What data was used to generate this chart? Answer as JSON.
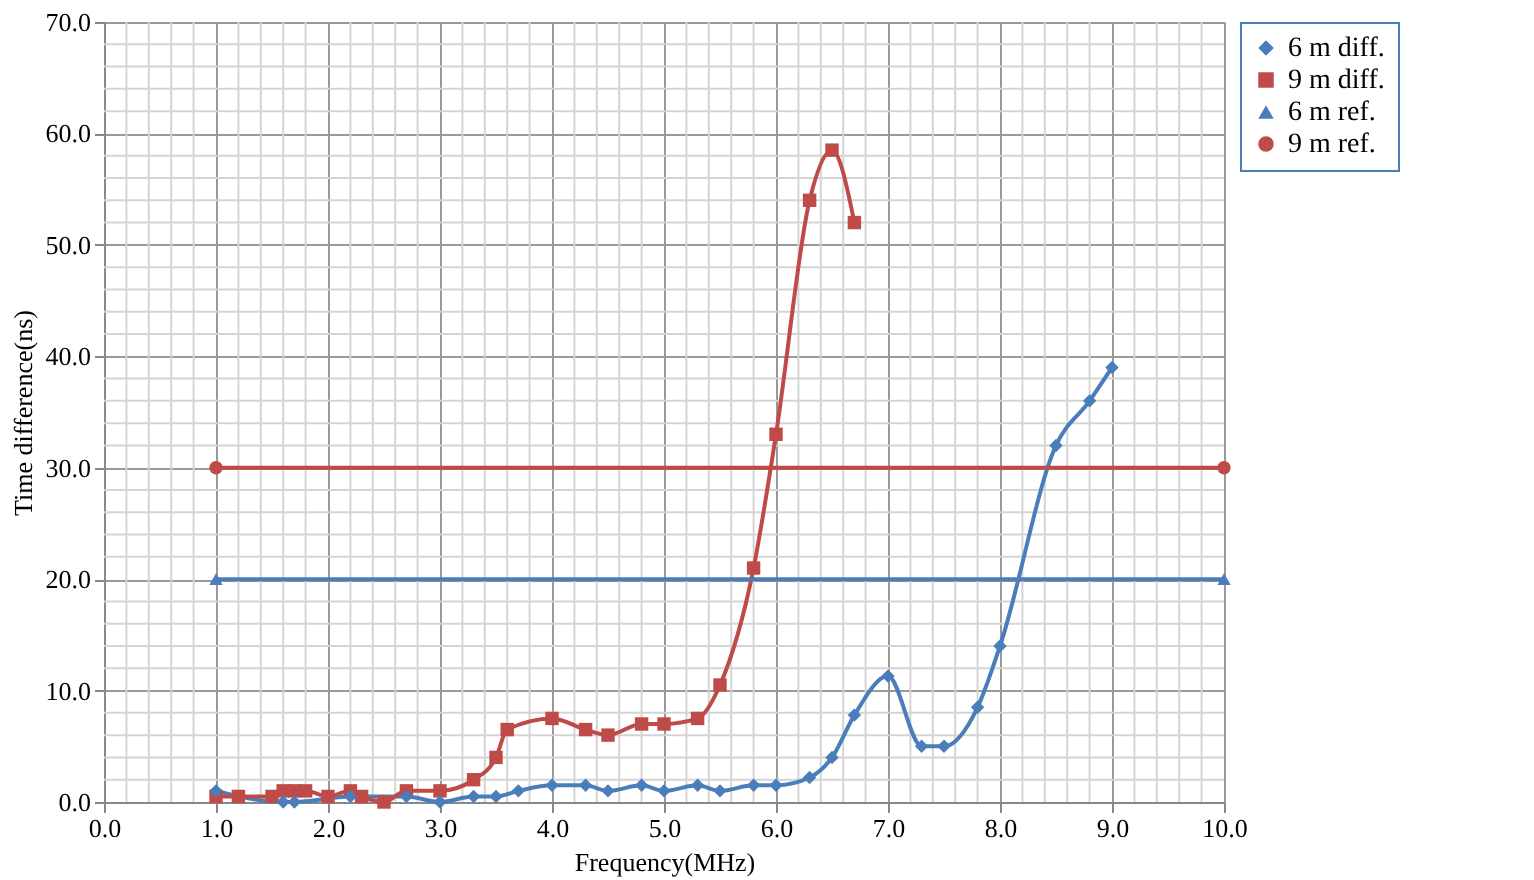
{
  "chart_data": {
    "type": "line",
    "xlabel": "Frequency(MHz)",
    "ylabel": "Time difference(ns)",
    "xlim": [
      0,
      10
    ],
    "ylim": [
      0,
      70
    ],
    "xticks": [
      {
        "value": 0,
        "label": "0.0"
      },
      {
        "value": 1,
        "label": "1.0"
      },
      {
        "value": 2,
        "label": "2.0"
      },
      {
        "value": 3,
        "label": "3.0"
      },
      {
        "value": 4,
        "label": "4.0"
      },
      {
        "value": 5,
        "label": "5.0"
      },
      {
        "value": 6,
        "label": "6.0"
      },
      {
        "value": 7,
        "label": "7.0"
      },
      {
        "value": 8,
        "label": "8.0"
      },
      {
        "value": 9,
        "label": "9.0"
      },
      {
        "value": 10,
        "label": "10.0"
      }
    ],
    "yticks": [
      {
        "value": 0,
        "label": "0.0"
      },
      {
        "value": 10,
        "label": "10.0"
      },
      {
        "value": 20,
        "label": "20.0"
      },
      {
        "value": 30,
        "label": "30.0"
      },
      {
        "value": 40,
        "label": "40.0"
      },
      {
        "value": 50,
        "label": "50.0"
      },
      {
        "value": 60,
        "label": "60.0"
      },
      {
        "value": 70,
        "label": "70.0"
      }
    ],
    "grid": true,
    "legend": "right",
    "line_style": "solid",
    "series": [
      {
        "name": "6 m diff.",
        "color": "#4a7ebb",
        "marker": "diamond",
        "x": [
          1.0,
          1.6,
          1.7,
          2.2,
          2.7,
          3.0,
          3.3,
          3.5,
          3.7,
          4.0,
          4.3,
          4.5,
          4.8,
          5.0,
          5.3,
          5.5,
          5.8,
          6.0,
          6.3,
          6.5,
          6.7,
          7.0,
          7.3,
          7.5,
          7.8,
          8.0,
          8.5,
          8.8,
          9.0
        ],
        "values": [
          1,
          0,
          0,
          0.5,
          0.5,
          0,
          0.5,
          0.5,
          1,
          1.5,
          1.5,
          1,
          1.5,
          1,
          1.5,
          1,
          1.5,
          1.5,
          2.2,
          4,
          7.8,
          11.3,
          5,
          5,
          8.5,
          14,
          32,
          36,
          39
        ]
      },
      {
        "name": "9 m diff.",
        "color": "#be4b48",
        "marker": "square",
        "x": [
          1.0,
          1.2,
          1.5,
          1.6,
          1.7,
          1.8,
          2.0,
          2.2,
          2.3,
          2.5,
          2.7,
          3.0,
          3.3,
          3.5,
          3.6,
          4.0,
          4.3,
          4.5,
          4.8,
          5.0,
          5.3,
          5.5,
          5.8,
          6.0,
          6.3,
          6.5,
          6.7
        ],
        "values": [
          0.5,
          0.5,
          0.5,
          1,
          1,
          1,
          0.5,
          1,
          0.5,
          0,
          1,
          1,
          2,
          4,
          6.5,
          7.5,
          6.5,
          6,
          7,
          7,
          7.5,
          10.5,
          21,
          33,
          54,
          58.5,
          52
        ]
      },
      {
        "name": "6 m ref.",
        "color": "#4a7ebb",
        "marker": "triangle",
        "x": [
          1,
          10
        ],
        "values": [
          20,
          20
        ]
      },
      {
        "name": "9 m ref.",
        "color": "#be4b48",
        "marker": "circle",
        "x": [
          1,
          10
        ],
        "values": [
          30,
          30
        ]
      }
    ]
  }
}
